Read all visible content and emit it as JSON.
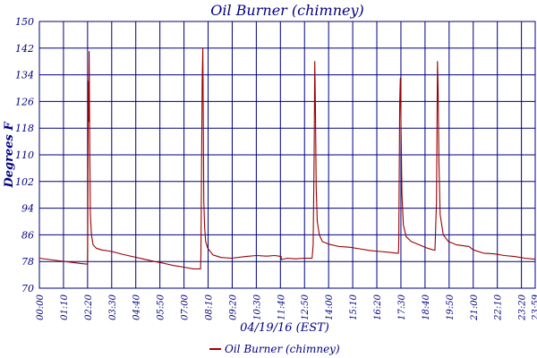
{
  "chart_data": {
    "type": "line",
    "title": "Oil Burner (chimney)",
    "xlabel": "04/19/16 (EST)",
    "ylabel": "Degrees F",
    "ylim": [
      70,
      150
    ],
    "xlim_hours": [
      0,
      24
    ],
    "yticks": [
      70,
      78,
      86,
      94,
      102,
      110,
      118,
      126,
      134,
      142,
      150
    ],
    "xticks": [
      "00:00",
      "01:10",
      "02:20",
      "03:30",
      "04:40",
      "05:50",
      "07:00",
      "08:10",
      "09:20",
      "10:30",
      "11:40",
      "12:50",
      "14:00",
      "15:10",
      "16:20",
      "17:30",
      "18:40",
      "19:50",
      "21:00",
      "22:10",
      "23:20",
      "23:59"
    ],
    "grid": true,
    "legend_position": "bottom-center",
    "series": [
      {
        "name": "Oil Burner (chimney)",
        "color": "#990000",
        "points": [
          [
            0.0,
            79.0
          ],
          [
            0.5,
            78.6
          ],
          [
            1.0,
            78.2
          ],
          [
            1.5,
            77.8
          ],
          [
            2.0,
            77.4
          ],
          [
            2.33,
            77.2
          ],
          [
            2.34,
            84.0
          ],
          [
            2.37,
            132.0
          ],
          [
            2.39,
            120.0
          ],
          [
            2.41,
            141.0
          ],
          [
            2.44,
            112.0
          ],
          [
            2.47,
            92.0
          ],
          [
            2.52,
            86.0
          ],
          [
            2.6,
            83.0
          ],
          [
            2.75,
            82.0
          ],
          [
            3.0,
            81.5
          ],
          [
            3.5,
            81.0
          ],
          [
            4.0,
            80.2
          ],
          [
            4.5,
            79.5
          ],
          [
            5.0,
            78.8
          ],
          [
            5.5,
            78.1
          ],
          [
            6.0,
            77.5
          ],
          [
            6.5,
            76.8
          ],
          [
            7.0,
            76.3
          ],
          [
            7.45,
            75.8
          ],
          [
            7.8,
            75.8
          ],
          [
            7.82,
            80.0
          ],
          [
            7.88,
            132.0
          ],
          [
            7.91,
            142.0
          ],
          [
            7.94,
            115.0
          ],
          [
            7.96,
            96.0
          ],
          [
            8.0,
            88.0
          ],
          [
            8.05,
            84.0
          ],
          [
            8.15,
            82.0
          ],
          [
            8.4,
            80.0
          ],
          [
            8.8,
            79.2
          ],
          [
            9.3,
            79.0
          ],
          [
            10.0,
            79.5
          ],
          [
            10.5,
            79.8
          ],
          [
            11.0,
            79.6
          ],
          [
            11.4,
            79.8
          ],
          [
            11.7,
            79.5
          ],
          [
            11.72,
            78.6
          ],
          [
            12.0,
            79.0
          ],
          [
            12.4,
            78.8
          ],
          [
            12.8,
            79.0
          ],
          [
            13.2,
            79.0
          ],
          [
            13.25,
            83.0
          ],
          [
            13.3,
            110.0
          ],
          [
            13.33,
            138.0
          ],
          [
            13.36,
            125.0
          ],
          [
            13.4,
            100.0
          ],
          [
            13.45,
            90.0
          ],
          [
            13.55,
            86.0
          ],
          [
            13.7,
            84.0
          ],
          [
            14.0,
            83.2
          ],
          [
            14.5,
            82.5
          ],
          [
            15.0,
            82.3
          ],
          [
            15.5,
            81.8
          ],
          [
            16.0,
            81.3
          ],
          [
            16.5,
            81.0
          ],
          [
            17.0,
            80.7
          ],
          [
            17.3,
            80.5
          ],
          [
            17.38,
            80.5
          ],
          [
            17.4,
            85.0
          ],
          [
            17.44,
            126.0
          ],
          [
            17.47,
            133.0
          ],
          [
            17.5,
            120.0
          ],
          [
            17.55,
            98.0
          ],
          [
            17.62,
            89.0
          ],
          [
            17.75,
            85.5
          ],
          [
            18.0,
            84.0
          ],
          [
            18.4,
            83.0
          ],
          [
            18.7,
            82.2
          ],
          [
            19.05,
            81.5
          ],
          [
            19.15,
            81.4
          ],
          [
            19.22,
            96.0
          ],
          [
            19.27,
            138.0
          ],
          [
            19.3,
            130.0
          ],
          [
            19.34,
            108.0
          ],
          [
            19.4,
            92.0
          ],
          [
            19.55,
            86.0
          ],
          [
            19.8,
            84.0
          ],
          [
            20.2,
            83.0
          ],
          [
            20.8,
            82.5
          ],
          [
            21.0,
            81.5
          ],
          [
            21.5,
            80.5
          ],
          [
            22.0,
            80.3
          ],
          [
            22.5,
            79.8
          ],
          [
            23.0,
            79.5
          ],
          [
            23.5,
            79.0
          ],
          [
            24.0,
            78.7
          ]
        ]
      }
    ]
  }
}
